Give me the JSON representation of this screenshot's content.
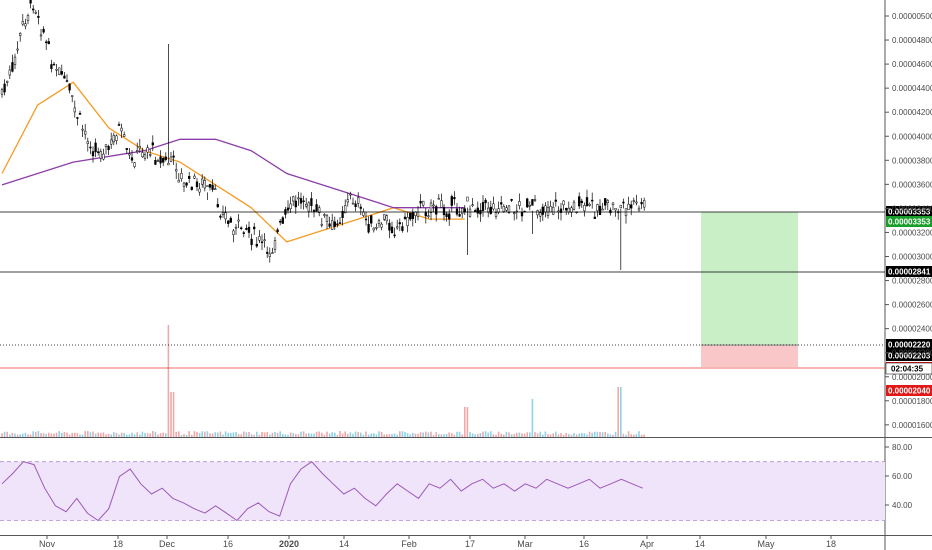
{
  "chart_data": [
    {
      "type": "candlestick",
      "panel": "price",
      "ylim": [
        1.5e-06,
        5.1e-06
      ],
      "y_ticks": [
        "0.00000500",
        "0.00004800",
        "0.00004600",
        "0.00004400",
        "0.00004200",
        "0.00004000",
        "0.00003800",
        "0.00003600",
        "0.00003400",
        "0.00003200",
        "0.00003000",
        "0.00002800",
        "0.00002600",
        "0.00002400",
        "0.00002200",
        "0.00002000",
        "0.00001800",
        "0.00001600"
      ],
      "x_ticks": [
        "Nov",
        "18",
        "Dec",
        "16",
        "2020",
        "14",
        "Feb",
        "17",
        "Mar",
        "16",
        "Apr",
        "14",
        "May",
        "18"
      ],
      "series": [
        {
          "name": "",
          "x": [
            0,
            6,
            12,
            18,
            24,
            30,
            36,
            42,
            48,
            54,
            60,
            66,
            72,
            78,
            84,
            90,
            96,
            102,
            108,
            114,
            120,
            126,
            132,
            138,
            144,
            150,
            156,
            162,
            168,
            174,
            180,
            186,
            192,
            198,
            204,
            210,
            216,
            222,
            228,
            234,
            240,
            246,
            252,
            258,
            264,
            270,
            276,
            282,
            288,
            294,
            300,
            306,
            312,
            318,
            324,
            330,
            336,
            342,
            348,
            354,
            360
          ],
          "values": [
            3.2e-06,
            3.4e-06,
            3.8e-06,
            4e-06,
            3.7e-06,
            3.4e-06,
            3.3e-06,
            3e-06,
            2.8e-06,
            2.7e-06,
            2.7e-06,
            2.9e-06,
            2.6e-06,
            2.7e-06,
            2.7e-06,
            2.6e-06,
            2.6e-06,
            2.4e-06,
            2.4e-06,
            2.4e-06,
            2.3e-06,
            2.1e-06,
            2e-06,
            2e-06,
            1.9e-06,
            1.8e-06,
            2e-06,
            2.2e-06,
            2.3e-06,
            2.2e-06,
            2.1e-06,
            2e-06,
            2.2e-06,
            2.3e-06,
            2.1e-06,
            2e-06,
            2.1e-06,
            2e-06,
            2.1e-06,
            2.2e-06,
            2.2e-06,
            2.2e-06,
            2.2e-06,
            2.2e-06,
            2.2e-06,
            2.2e-06,
            2.2e-06,
            2.2e-06,
            2.2e-06,
            2.2e-06,
            2.2e-06,
            2.2e-06,
            2.2e-06,
            2.2e-06,
            2.2e-06,
            2.2e-06,
            2.2e-06,
            2.2e-06,
            2.2e-06,
            2.2e-06,
            2.2e-06
          ]
        },
        {
          "name": "",
          "color": "#f59b23",
          "x": [
            0,
            20,
            40,
            60,
            80,
            100,
            120,
            140,
            160,
            180,
            200,
            220,
            240,
            260
          ],
          "values": [
            2.5e-06,
            3.1e-06,
            3.3e-06,
            2.9e-06,
            2.7e-06,
            2.6e-06,
            2.4e-06,
            2.2e-06,
            1.9e-06,
            2e-06,
            2.1e-06,
            2.2e-06,
            2.1e-06,
            2.1e-06
          ]
        },
        {
          "name": "",
          "color": "#8c3ca8",
          "x": [
            0,
            40,
            80,
            100,
            120,
            140,
            160,
            180,
            200,
            220,
            240,
            260
          ],
          "values": [
            2.4e-06,
            2.6e-06,
            2.7e-06,
            2.8e-06,
            2.8e-06,
            2.7e-06,
            2.5e-06,
            2.4e-06,
            2.3e-06,
            2.2e-06,
            2.2e-06,
            2.2e-06
          ]
        }
      ],
      "horizontal_levels": [
        {
          "value": 3.353e-05,
          "label": "0.00003353",
          "color": "#1a9e2a"
        },
        {
          "value": 2.841e-05,
          "label": "0.00002841",
          "color": "#000000"
        },
        {
          "value": 2.22e-05,
          "label": "0.00002220",
          "color": "#000000"
        },
        {
          "value": 2.203e-05,
          "label": "0.00002203",
          "color": "#000000"
        },
        {
          "value": 2.04e-05,
          "label": "0.00002040",
          "color": "#e01818"
        }
      ],
      "price_badges": {
        "countdown": "02:04:35",
        "red_badge_2": "0.00002040"
      },
      "position_box": {
        "entry": 2.22e-05,
        "target": 3.35e-05,
        "stop": 2.04e-05
      }
    },
    {
      "type": "line",
      "panel": "rsi",
      "name": "",
      "color": "#9b59b6",
      "ylim": [
        20,
        85
      ],
      "y_ticks": [
        "80.00",
        "60.00",
        "40.00"
      ],
      "bands": [
        30,
        70
      ],
      "x": [
        0,
        6,
        12,
        18,
        24,
        30,
        36,
        42,
        48,
        54,
        60,
        66,
        72,
        78,
        84,
        90,
        96,
        102,
        108,
        114,
        120,
        126,
        132,
        138,
        144,
        150,
        156,
        162,
        168,
        174,
        180,
        186,
        192,
        198,
        204,
        210,
        216,
        222,
        228,
        234,
        240,
        246,
        252,
        258,
        264,
        270,
        276,
        282,
        288,
        294,
        300,
        306,
        312,
        318,
        324,
        330,
        336,
        342,
        348,
        354,
        360
      ],
      "values": [
        55,
        62,
        70,
        68,
        52,
        40,
        36,
        45,
        35,
        30,
        38,
        60,
        65,
        55,
        48,
        52,
        45,
        42,
        38,
        35,
        40,
        35,
        30,
        38,
        42,
        36,
        33,
        55,
        65,
        70,
        62,
        55,
        48,
        52,
        45,
        40,
        48,
        55,
        50,
        45,
        55,
        52,
        58,
        50,
        55,
        58,
        52,
        55,
        50,
        55,
        52,
        58,
        55,
        52,
        55,
        58,
        52,
        55,
        58,
        55,
        52
      ]
    }
  ]
}
